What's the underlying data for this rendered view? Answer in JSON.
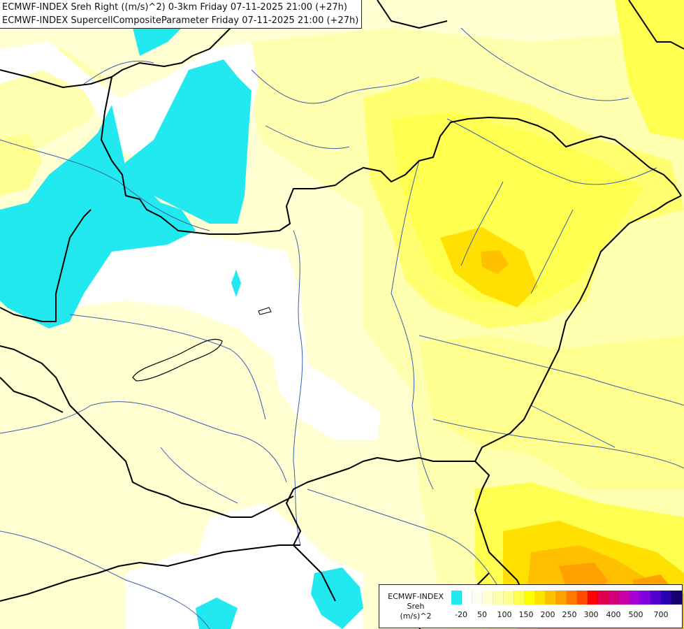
{
  "header": {
    "line1": "ECMWF-INDEX Sreh Right ((m/s)^2) 0-3km Friday 07-11-2025 21:00 (+27h)",
    "line2": "ECMWF-INDEX SupercellCompositeParameter Friday 07-11-2025 21:00 (+27h)"
  },
  "legend": {
    "line1": "ECMWF-INDEX",
    "line2": "Sreh",
    "line3": "(m/s)^2",
    "colors": [
      "#22e8f0",
      "#ffffff",
      "#fffff0",
      "#ffffd2",
      "#ffffb0",
      "#ffff90",
      "#ffff50",
      "#ffff00",
      "#ffe000",
      "#ffc000",
      "#ffa000",
      "#ff7b00",
      "#ff4a00",
      "#ff0000",
      "#e0004a",
      "#d4007a",
      "#c800a8",
      "#a800d4",
      "#8000e0",
      "#5000d0",
      "#2a00b0",
      "#14006e"
    ],
    "ticks": [
      "-20",
      "50",
      "100",
      "150",
      "200",
      "250",
      "300",
      "400",
      "500",
      "700"
    ]
  }
}
